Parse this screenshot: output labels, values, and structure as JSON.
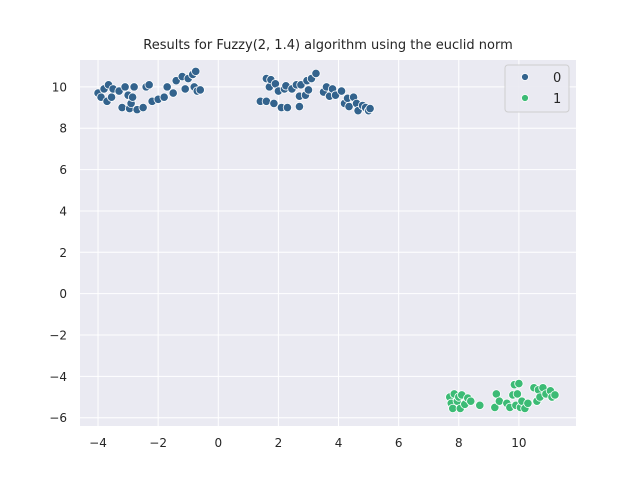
{
  "chart_data": {
    "type": "scatter",
    "title": "Results for Fuzzy(2, 1.4) algorithm using the euclid norm",
    "xlabel": "",
    "ylabel": "",
    "xlim": [
      -4.6,
      11.9
    ],
    "ylim": [
      -6.4,
      11.3
    ],
    "xticks": [
      -4,
      -2,
      0,
      2,
      4,
      6,
      8,
      10
    ],
    "yticks": [
      -6,
      -4,
      -2,
      0,
      2,
      4,
      6,
      8,
      10
    ],
    "xtick_labels": [
      "−4",
      "−2",
      "0",
      "2",
      "4",
      "6",
      "8",
      "10"
    ],
    "ytick_labels": [
      "−6",
      "−4",
      "−2",
      "0",
      "2",
      "4",
      "6",
      "8",
      "10"
    ],
    "grid": true,
    "legend_position": "top-right",
    "series": [
      {
        "name": "0",
        "color": "#33638d",
        "points": [
          [
            -4.0,
            9.7
          ],
          [
            -3.9,
            9.5
          ],
          [
            -3.8,
            9.9
          ],
          [
            -3.7,
            9.3
          ],
          [
            -3.65,
            10.1
          ],
          [
            -3.55,
            9.5
          ],
          [
            -3.5,
            9.9
          ],
          [
            -3.3,
            9.8
          ],
          [
            -3.2,
            9.0
          ],
          [
            -3.1,
            10.0
          ],
          [
            -3.0,
            9.6
          ],
          [
            -2.95,
            8.95
          ],
          [
            -2.9,
            9.2
          ],
          [
            -2.85,
            9.5
          ],
          [
            -2.8,
            10.0
          ],
          [
            -2.7,
            8.9
          ],
          [
            -2.5,
            9.0
          ],
          [
            -2.4,
            10.0
          ],
          [
            -2.3,
            10.1
          ],
          [
            -2.2,
            9.3
          ],
          [
            -2.0,
            9.4
          ],
          [
            -1.8,
            9.5
          ],
          [
            -1.7,
            10.0
          ],
          [
            -1.5,
            9.7
          ],
          [
            -1.4,
            10.3
          ],
          [
            -1.2,
            10.5
          ],
          [
            -1.1,
            9.9
          ],
          [
            -1.0,
            10.4
          ],
          [
            -0.85,
            10.6
          ],
          [
            -0.8,
            10.0
          ],
          [
            -0.75,
            10.75
          ],
          [
            -0.7,
            9.8
          ],
          [
            -0.6,
            9.85
          ],
          [
            1.4,
            9.3
          ],
          [
            1.6,
            9.3
          ],
          [
            1.6,
            10.4
          ],
          [
            1.7,
            10.0
          ],
          [
            1.75,
            10.35
          ],
          [
            1.85,
            9.2
          ],
          [
            1.9,
            10.15
          ],
          [
            2.0,
            9.8
          ],
          [
            2.1,
            9.0
          ],
          [
            2.2,
            9.9
          ],
          [
            2.25,
            10.05
          ],
          [
            2.3,
            9.0
          ],
          [
            2.45,
            9.9
          ],
          [
            2.6,
            10.1
          ],
          [
            2.7,
            9.55
          ],
          [
            2.75,
            10.1
          ],
          [
            2.9,
            9.6
          ],
          [
            2.95,
            10.3
          ],
          [
            3.0,
            9.85
          ],
          [
            3.1,
            10.4
          ],
          [
            3.25,
            10.65
          ],
          [
            2.7,
            9.05
          ],
          [
            3.5,
            9.75
          ],
          [
            3.6,
            10.0
          ],
          [
            3.7,
            9.55
          ],
          [
            3.8,
            9.9
          ],
          [
            3.9,
            9.6
          ],
          [
            4.1,
            9.8
          ],
          [
            4.2,
            9.2
          ],
          [
            4.3,
            9.45
          ],
          [
            4.35,
            9.05
          ],
          [
            4.5,
            9.5
          ],
          [
            4.6,
            9.2
          ],
          [
            4.65,
            8.85
          ],
          [
            4.8,
            9.1
          ],
          [
            4.9,
            9.0
          ],
          [
            5.0,
            8.85
          ],
          [
            5.05,
            8.95
          ]
        ]
      },
      {
        "name": "1",
        "color": "#3cbb75",
        "points": [
          [
            7.7,
            -5.0
          ],
          [
            7.75,
            -5.3
          ],
          [
            7.8,
            -5.55
          ],
          [
            7.85,
            -4.85
          ],
          [
            7.95,
            -5.2
          ],
          [
            8.0,
            -5.0
          ],
          [
            8.05,
            -5.55
          ],
          [
            8.1,
            -4.9
          ],
          [
            8.2,
            -5.35
          ],
          [
            8.3,
            -5.05
          ],
          [
            8.4,
            -5.2
          ],
          [
            8.7,
            -5.4
          ],
          [
            9.2,
            -5.5
          ],
          [
            9.25,
            -4.85
          ],
          [
            9.35,
            -5.2
          ],
          [
            9.6,
            -5.3
          ],
          [
            9.7,
            -5.5
          ],
          [
            9.8,
            -4.9
          ],
          [
            9.85,
            -4.4
          ],
          [
            9.9,
            -5.4
          ],
          [
            9.95,
            -4.85
          ],
          [
            10.0,
            -4.35
          ],
          [
            10.05,
            -5.5
          ],
          [
            10.1,
            -5.2
          ],
          [
            10.2,
            -5.55
          ],
          [
            10.3,
            -5.3
          ],
          [
            10.5,
            -4.55
          ],
          [
            10.6,
            -5.2
          ],
          [
            10.65,
            -4.65
          ],
          [
            10.7,
            -5.0
          ],
          [
            10.8,
            -4.55
          ],
          [
            10.9,
            -4.85
          ],
          [
            11.05,
            -4.7
          ],
          [
            11.1,
            -5.0
          ],
          [
            11.2,
            -4.9
          ]
        ]
      }
    ]
  }
}
